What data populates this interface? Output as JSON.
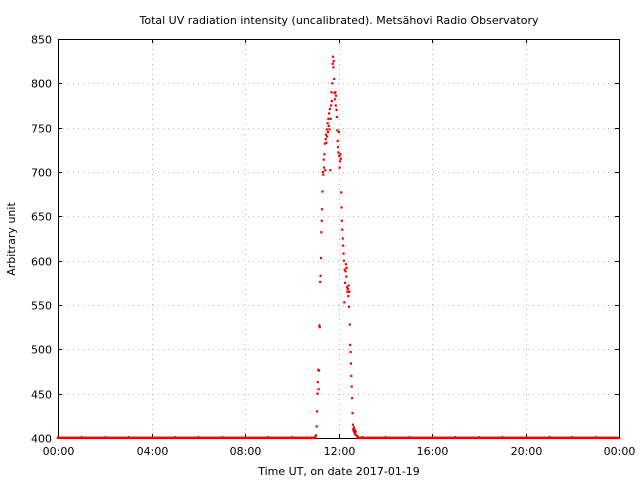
{
  "chart_data": {
    "type": "scatter",
    "title": "Total UV radiation intensity (uncalibrated). Metsähovi Radio Observatory",
    "xlabel": "Time UT, on date 2017-01-19",
    "ylabel": "Arbitrary unit",
    "xlim": [
      "00:00",
      "24:00"
    ],
    "ylim": [
      400,
      850
    ],
    "x_ticks": [
      "00:00",
      "04:00",
      "08:00",
      "12:00",
      "16:00",
      "20:00",
      "00:00"
    ],
    "y_ticks": [
      400,
      450,
      500,
      550,
      600,
      650,
      700,
      750,
      800,
      850
    ],
    "grid": true,
    "color": "#ee0000",
    "baseline": {
      "value": 400,
      "from": "00:00",
      "to": "24:00",
      "step_minutes": 5
    },
    "points": [
      {
        "x": "11:00",
        "y": 401
      },
      {
        "x": "11:02",
        "y": 403
      },
      {
        "x": "11:04",
        "y": 413
      },
      {
        "x": "11:05",
        "y": 430
      },
      {
        "x": "11:06",
        "y": 450
      },
      {
        "x": "11:07",
        "y": 463
      },
      {
        "x": "11:08",
        "y": 477
      },
      {
        "x": "11:09",
        "y": 455
      },
      {
        "x": "11:10",
        "y": 476
      },
      {
        "x": "11:11",
        "y": 527
      },
      {
        "x": "11:12",
        "y": 525
      },
      {
        "x": "11:13",
        "y": 576
      },
      {
        "x": "11:14",
        "y": 583
      },
      {
        "x": "11:15",
        "y": 603
      },
      {
        "x": "11:16",
        "y": 632
      },
      {
        "x": "11:17",
        "y": 645
      },
      {
        "x": "11:18",
        "y": 658
      },
      {
        "x": "11:19",
        "y": 678
      },
      {
        "x": "11:20",
        "y": 700
      },
      {
        "x": "11:21",
        "y": 697
      },
      {
        "x": "11:22",
        "y": 714
      },
      {
        "x": "11:23",
        "y": 705
      },
      {
        "x": "11:24",
        "y": 720
      },
      {
        "x": "11:25",
        "y": 732
      },
      {
        "x": "11:26",
        "y": 702
      },
      {
        "x": "11:27",
        "y": 737
      },
      {
        "x": "11:28",
        "y": 742
      },
      {
        "x": "11:29",
        "y": 733
      },
      {
        "x": "11:30",
        "y": 748
      },
      {
        "x": "11:31",
        "y": 740
      },
      {
        "x": "11:32",
        "y": 755
      },
      {
        "x": "11:33",
        "y": 745
      },
      {
        "x": "11:34",
        "y": 760
      },
      {
        "x": "11:35",
        "y": 752
      },
      {
        "x": "11:36",
        "y": 766
      },
      {
        "x": "11:37",
        "y": 748
      },
      {
        "x": "11:38",
        "y": 771
      },
      {
        "x": "11:39",
        "y": 702
      },
      {
        "x": "11:40",
        "y": 760
      },
      {
        "x": "11:41",
        "y": 775
      },
      {
        "x": "11:42",
        "y": 790
      },
      {
        "x": "11:43",
        "y": 780
      },
      {
        "x": "11:44",
        "y": 800
      },
      {
        "x": "11:45",
        "y": 822
      },
      {
        "x": "11:46",
        "y": 830
      },
      {
        "x": "11:47",
        "y": 818
      },
      {
        "x": "11:48",
        "y": 825
      },
      {
        "x": "11:49",
        "y": 805
      },
      {
        "x": "11:50",
        "y": 789
      },
      {
        "x": "11:51",
        "y": 782
      },
      {
        "x": "11:52",
        "y": 790
      },
      {
        "x": "11:53",
        "y": 775
      },
      {
        "x": "11:54",
        "y": 786
      },
      {
        "x": "11:55",
        "y": 770
      },
      {
        "x": "11:56",
        "y": 762
      },
      {
        "x": "11:57",
        "y": 747
      },
      {
        "x": "11:58",
        "y": 735
      },
      {
        "x": "11:59",
        "y": 728
      },
      {
        "x": "12:00",
        "y": 722
      },
      {
        "x": "12:01",
        "y": 745
      },
      {
        "x": "12:02",
        "y": 718
      },
      {
        "x": "12:03",
        "y": 705
      },
      {
        "x": "12:04",
        "y": 712
      },
      {
        "x": "12:05",
        "y": 720
      },
      {
        "x": "12:06",
        "y": 715
      },
      {
        "x": "12:07",
        "y": 677
      },
      {
        "x": "12:08",
        "y": 660
      },
      {
        "x": "12:09",
        "y": 645
      },
      {
        "x": "12:10",
        "y": 635
      },
      {
        "x": "12:11",
        "y": 625
      },
      {
        "x": "12:12",
        "y": 617
      },
      {
        "x": "12:13",
        "y": 608
      },
      {
        "x": "12:14",
        "y": 600
      },
      {
        "x": "12:15",
        "y": 553
      },
      {
        "x": "12:16",
        "y": 590
      },
      {
        "x": "12:17",
        "y": 575
      },
      {
        "x": "12:18",
        "y": 588
      },
      {
        "x": "12:19",
        "y": 596
      },
      {
        "x": "12:20",
        "y": 582
      },
      {
        "x": "12:21",
        "y": 592
      },
      {
        "x": "12:22",
        "y": 570
      },
      {
        "x": "12:23",
        "y": 565
      },
      {
        "x": "12:24",
        "y": 568
      },
      {
        "x": "12:25",
        "y": 560
      },
      {
        "x": "12:26",
        "y": 572
      },
      {
        "x": "12:27",
        "y": 548
      },
      {
        "x": "12:28",
        "y": 565
      },
      {
        "x": "12:29",
        "y": 528
      },
      {
        "x": "12:30",
        "y": 505
      },
      {
        "x": "12:31",
        "y": 497
      },
      {
        "x": "12:32",
        "y": 484
      },
      {
        "x": "12:33",
        "y": 470
      },
      {
        "x": "12:34",
        "y": 458
      },
      {
        "x": "12:35",
        "y": 445
      },
      {
        "x": "12:36",
        "y": 428
      },
      {
        "x": "12:37",
        "y": 415
      },
      {
        "x": "12:38",
        "y": 410
      },
      {
        "x": "12:39",
        "y": 408
      },
      {
        "x": "12:40",
        "y": 412
      },
      {
        "x": "12:41",
        "y": 406
      },
      {
        "x": "12:42",
        "y": 409
      },
      {
        "x": "12:43",
        "y": 404
      },
      {
        "x": "12:44",
        "y": 407
      },
      {
        "x": "12:46",
        "y": 403
      },
      {
        "x": "12:48",
        "y": 402
      },
      {
        "x": "12:50",
        "y": 401
      }
    ]
  }
}
